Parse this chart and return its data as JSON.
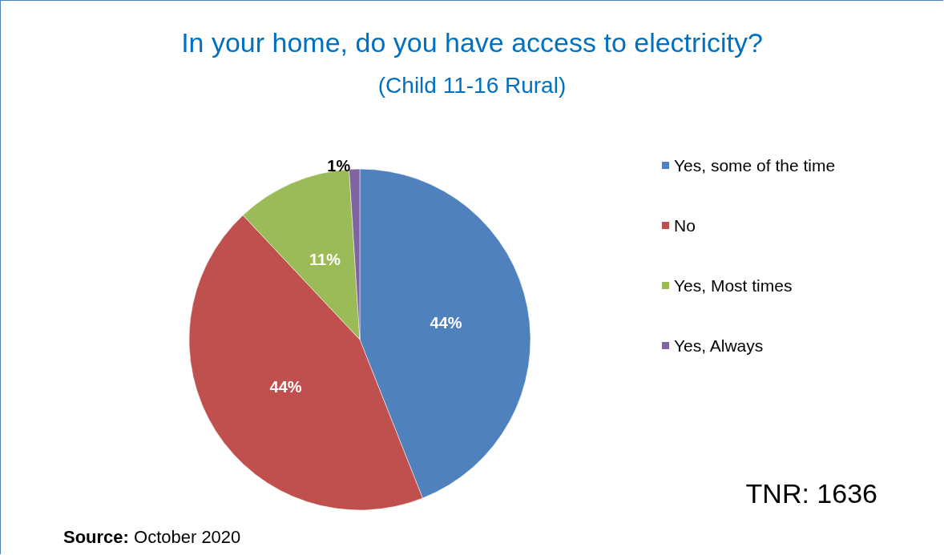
{
  "chart_data": {
    "type": "pie",
    "title": "In your home, do you have access to electricity?",
    "subtitle": "(Child 11-16 Rural)",
    "categories": [
      "Yes, some of the time",
      "No",
      "Yes, Most times",
      "Yes, Always"
    ],
    "values": [
      44,
      44,
      11,
      1
    ],
    "colors": [
      "#4f81bd",
      "#c0504d",
      "#9bbb59",
      "#8064a2"
    ],
    "value_labels": [
      "44%",
      "44%",
      "11%",
      "1%"
    ],
    "legend": "right",
    "annotations": [
      "TNR: 1636",
      "Source: October 2020"
    ]
  }
}
